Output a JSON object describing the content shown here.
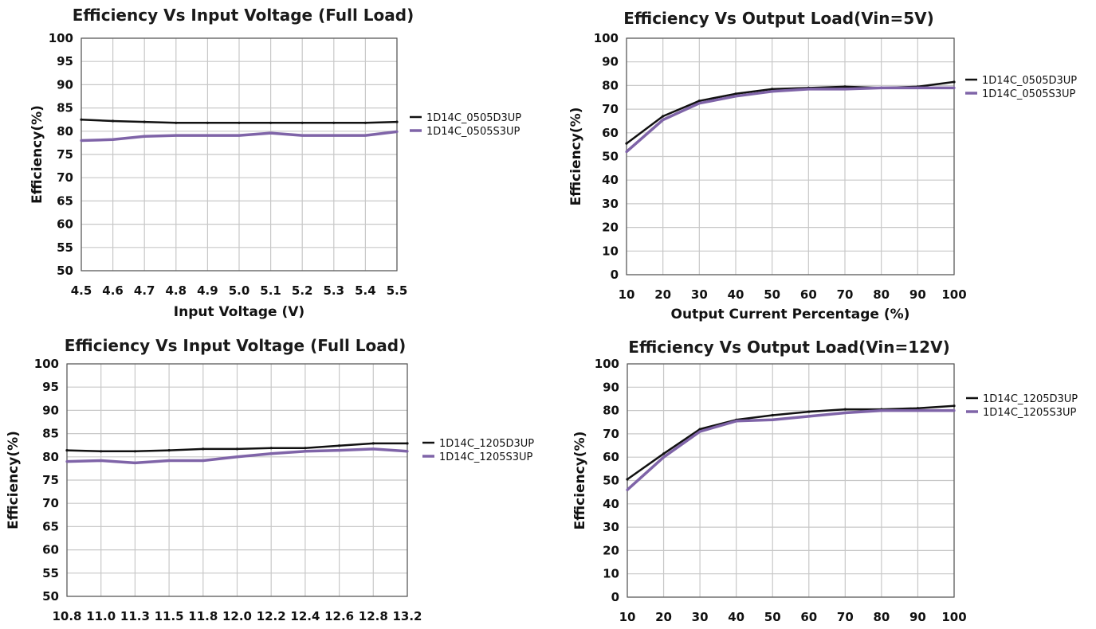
{
  "chart_data": [
    {
      "type": "line",
      "title": "Efficiency Vs Input Voltage (Full Load)",
      "xlabel": "Input Voltage (V)",
      "ylabel": "Efficiency(%)",
      "categories": [
        "4.5",
        "4.6",
        "4.7",
        "4.8",
        "4.9",
        "5.0",
        "5.1",
        "5.2",
        "5.3",
        "5.4",
        "5.5"
      ],
      "y_ticks": [
        "50",
        "55",
        "60",
        "65",
        "70",
        "75",
        "80",
        "85",
        "90",
        "95",
        "100"
      ],
      "ylim": [
        50,
        100
      ],
      "grid": true,
      "legend_position": "right",
      "series": [
        {
          "name": "1D14C_0505D3UP",
          "color": "#111111",
          "values": [
            82.5,
            82.2,
            82.0,
            81.8,
            81.8,
            81.8,
            81.8,
            81.8,
            81.8,
            81.8,
            82.0
          ]
        },
        {
          "name": "1D14C_0505S3UP",
          "color": "#7f64a8",
          "values": [
            78.0,
            78.2,
            78.9,
            79.1,
            79.1,
            79.1,
            79.6,
            79.1,
            79.1,
            79.1,
            79.9
          ]
        }
      ]
    },
    {
      "type": "line",
      "title": "Efficiency Vs Output Load(Vin=5V)",
      "xlabel": "Output Current Percentage (%)",
      "ylabel": "Efficiency(%)",
      "categories": [
        "10",
        "20",
        "30",
        "40",
        "50",
        "60",
        "70",
        "80",
        "90",
        "100"
      ],
      "y_ticks": [
        "0",
        "10",
        "20",
        "30",
        "40",
        "50",
        "60",
        "70",
        "80",
        "90",
        "100"
      ],
      "ylim": [
        0,
        100
      ],
      "grid": true,
      "legend_position": "right",
      "series": [
        {
          "name": "1D14C_0505D3UP",
          "color": "#111111",
          "values": [
            55.5,
            67.0,
            73.5,
            76.5,
            78.5,
            79.0,
            79.5,
            79.0,
            79.5,
            81.5
          ]
        },
        {
          "name": "1D14C_0505S3UP",
          "color": "#7f64a8",
          "values": [
            52.0,
            65.5,
            72.5,
            75.5,
            77.5,
            78.5,
            78.5,
            79.0,
            79.0,
            79.0
          ]
        }
      ]
    },
    {
      "type": "line",
      "title": "Efficiency Vs Input Voltage (Full Load)",
      "xlabel": "",
      "ylabel": "Efficiency(%)",
      "categories": [
        "10.8",
        "11.0",
        "11.3",
        "11.5",
        "11.8",
        "12.0",
        "12.2",
        "12.4",
        "12.6",
        "12.8",
        "13.2"
      ],
      "y_ticks": [
        "50",
        "55",
        "60",
        "65",
        "70",
        "75",
        "80",
        "85",
        "90",
        "95",
        "100"
      ],
      "ylim": [
        50,
        100
      ],
      "grid": true,
      "legend_position": "right",
      "series": [
        {
          "name": "1D14C_1205D3UP",
          "color": "#111111",
          "values": [
            81.4,
            81.2,
            81.2,
            81.4,
            81.7,
            81.7,
            81.9,
            81.9,
            82.4,
            82.9,
            82.9
          ]
        },
        {
          "name": "1D14C_1205S3UP",
          "color": "#7f64a8",
          "values": [
            79.0,
            79.2,
            78.7,
            79.2,
            79.2,
            80.0,
            80.7,
            81.2,
            81.4,
            81.7,
            81.2
          ]
        }
      ]
    },
    {
      "type": "line",
      "title": "Efficiency Vs Output Load(Vin=12V)",
      "xlabel": "",
      "ylabel": "Efficiency(%)",
      "categories": [
        "10",
        "20",
        "30",
        "40",
        "50",
        "60",
        "70",
        "80",
        "90",
        "100"
      ],
      "y_ticks": [
        "0",
        "10",
        "20",
        "30",
        "40",
        "50",
        "60",
        "70",
        "80",
        "90",
        "100"
      ],
      "ylim": [
        0,
        100
      ],
      "grid": true,
      "legend_position": "right",
      "series": [
        {
          "name": "1D14C_1205D3UP",
          "color": "#111111",
          "values": [
            50.5,
            61.5,
            72.0,
            76.0,
            78.0,
            79.5,
            80.5,
            80.5,
            81.0,
            82.0
          ]
        },
        {
          "name": "1D14C_1205S3UP",
          "color": "#7f64a8",
          "values": [
            46.0,
            60.0,
            71.0,
            75.5,
            76.0,
            77.5,
            79.0,
            80.0,
            80.0,
            80.0
          ]
        }
      ]
    }
  ]
}
